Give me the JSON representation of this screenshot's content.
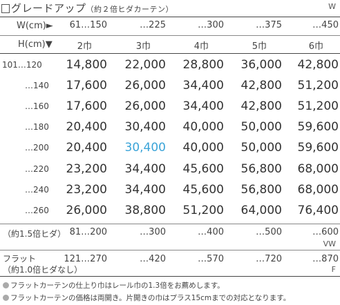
{
  "title": {
    "main": "グレードアップ",
    "sub": "（約２倍ヒダカーテン）",
    "code": "W"
  },
  "width_header": {
    "label": "W(cm)►",
    "values": [
      "61…150",
      "…225",
      "…300",
      "…375",
      "…450"
    ]
  },
  "height_header": {
    "label": "H(cm)▼",
    "panels": [
      "2巾",
      "3巾",
      "4巾",
      "5巾",
      "6巾"
    ]
  },
  "rows": [
    {
      "height": "101…120",
      "prices": [
        "14,800",
        "22,000",
        "28,800",
        "36,000",
        "42,800"
      ]
    },
    {
      "height": "…140",
      "prices": [
        "17,600",
        "26,000",
        "34,400",
        "42,800",
        "51,200"
      ]
    },
    {
      "height": "…160",
      "prices": [
        "17,600",
        "26,000",
        "34,400",
        "42,800",
        "51,200"
      ]
    },
    {
      "height": "…180",
      "prices": [
        "20,400",
        "30,400",
        "40,000",
        "50,000",
        "59,600"
      ]
    },
    {
      "height": "…200",
      "prices": [
        "20,400",
        "30,400",
        "40,000",
        "50,000",
        "59,600"
      ]
    },
    {
      "height": "…220",
      "prices": [
        "23,200",
        "34,400",
        "45,600",
        "56,800",
        "68,000"
      ]
    },
    {
      "height": "…240",
      "prices": [
        "23,200",
        "34,400",
        "45,600",
        "56,800",
        "68,000"
      ]
    },
    {
      "height": "…260",
      "prices": [
        "26,000",
        "38,800",
        "51,200",
        "64,000",
        "76,400"
      ]
    }
  ],
  "highlight_color": "#3ba4d8",
  "pleat15": {
    "label": "（約1.5倍ヒダ）",
    "values": [
      "81…200",
      "…300",
      "…400",
      "…500",
      "…600"
    ],
    "code": "VW"
  },
  "flat": {
    "label1": "フラット",
    "label2": "（約1.0倍ヒダなし）",
    "values": [
      "121…270",
      "…420",
      "…570",
      "…720",
      "…870"
    ],
    "code": "F"
  },
  "notes": [
    "フラットカーテンの仕上り巾はレール巾の1.3倍をお薦めします。",
    "フラットカーテンの価格は両開き。片開きの巾はプラス15cmまでの対応となります。"
  ]
}
